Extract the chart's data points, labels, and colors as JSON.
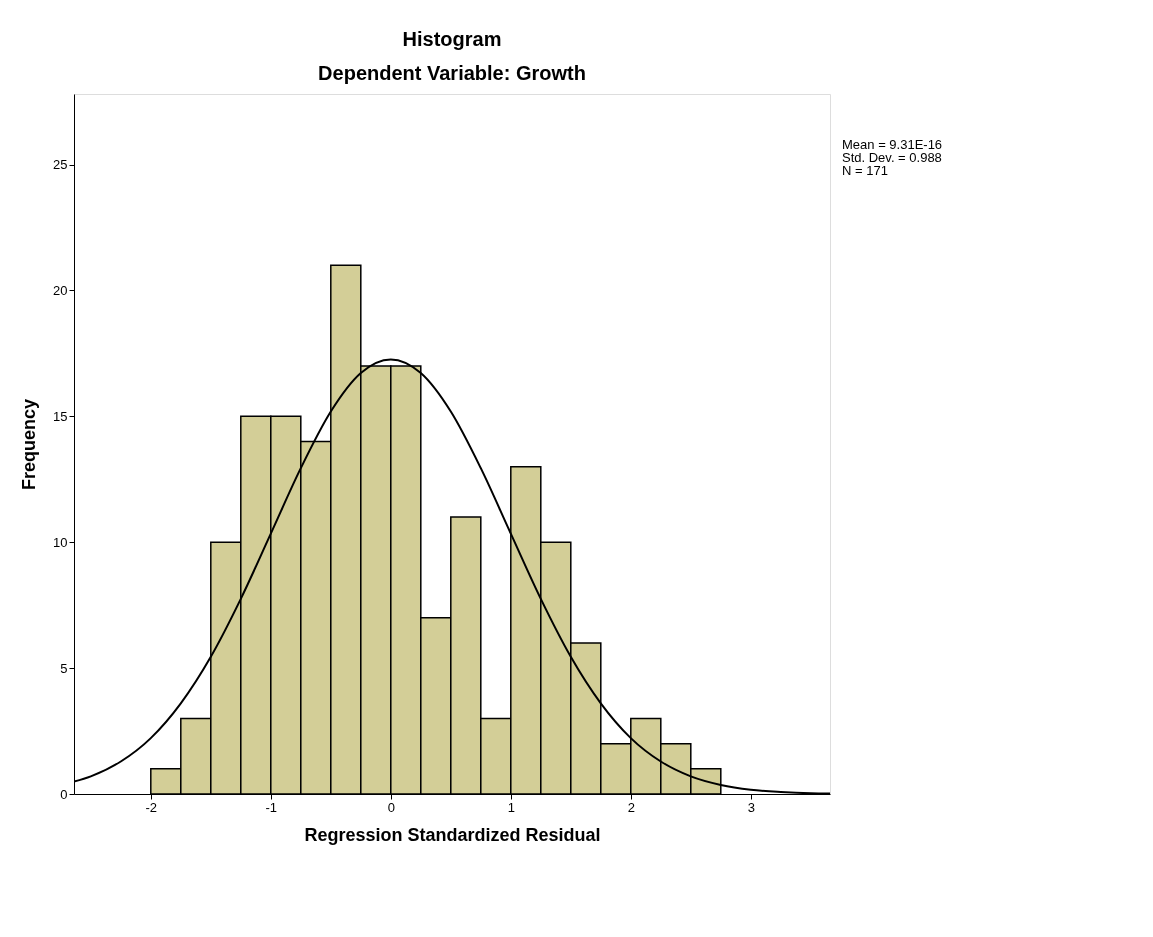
{
  "chart_data": {
    "type": "histogram",
    "title": "Histogram",
    "subtitle": "Dependent Variable: Growth",
    "xlabel": "Regression Standardized Residual",
    "ylabel": "Frequency",
    "bins": [
      -2.0,
      -1.75,
      -1.5,
      -1.25,
      -1.0,
      -0.75,
      -0.5,
      -0.25,
      0.0,
      0.25,
      0.5,
      0.75,
      1.0,
      1.25,
      1.5,
      1.75,
      2.0,
      2.25,
      2.5,
      2.75
    ],
    "values": [
      1,
      3,
      10,
      15,
      15,
      14,
      21,
      17,
      17,
      7,
      11,
      3,
      13,
      10,
      6,
      2,
      3,
      2,
      1
    ],
    "color": "#d3ce97",
    "series": [
      {
        "type": "line",
        "color": "#000000",
        "x": [
          -2.64,
          -2.5,
          -2.25,
          -2.0,
          -1.75,
          -1.5,
          -1.25,
          -1.0,
          -0.75,
          -0.5,
          -0.25,
          0.0,
          0.25,
          0.5,
          0.75,
          1.0,
          1.25,
          1.5,
          1.75,
          2.0,
          2.25,
          2.5,
          2.75,
          3.0,
          3.25,
          3.5,
          3.66
        ],
        "values": [
          0.49,
          0.7,
          1.29,
          2.22,
          3.6,
          5.45,
          7.75,
          10.34,
          12.94,
          15.19,
          16.72,
          17.26,
          16.72,
          15.19,
          12.94,
          10.34,
          7.75,
          5.45,
          3.6,
          2.22,
          1.29,
          0.7,
          0.36,
          0.17,
          0.08,
          0.03,
          0.02
        ]
      }
    ],
    "xlim": [
      -2.64,
      3.66
    ],
    "xticks": [
      -2,
      -1,
      0,
      1,
      2,
      3
    ],
    "ylim": [
      0,
      27.8
    ],
    "yticks": [
      0,
      5,
      10,
      15,
      20,
      25
    ],
    "grid": false,
    "annotations": [
      "Mean = 9.31E-16",
      "Std. Dev. = 0.988",
      "N = 171"
    ]
  }
}
